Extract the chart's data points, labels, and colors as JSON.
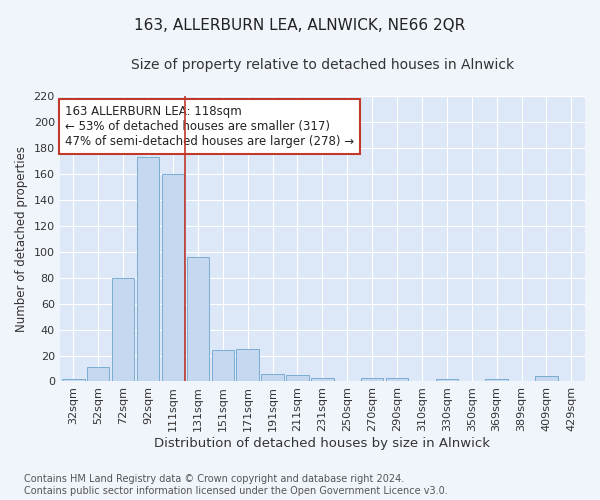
{
  "title": "163, ALLERBURN LEA, ALNWICK, NE66 2QR",
  "subtitle": "Size of property relative to detached houses in Alnwick",
  "xlabel": "Distribution of detached houses by size in Alnwick",
  "ylabel": "Number of detached properties",
  "categories": [
    "32sqm",
    "52sqm",
    "72sqm",
    "92sqm",
    "111sqm",
    "131sqm",
    "151sqm",
    "171sqm",
    "191sqm",
    "211sqm",
    "231sqm",
    "250sqm",
    "270sqm",
    "290sqm",
    "310sqm",
    "330sqm",
    "350sqm",
    "369sqm",
    "389sqm",
    "409sqm",
    "429sqm"
  ],
  "values": [
    2,
    11,
    80,
    173,
    160,
    96,
    24,
    25,
    6,
    5,
    3,
    0,
    3,
    3,
    0,
    2,
    0,
    2,
    0,
    4,
    0
  ],
  "bar_color": "#c5d8f0",
  "bar_edge_color": "#7aadd4",
  "plot_bg_color": "#dce8f7",
  "fig_bg_color": "#f0f4fb",
  "grid_color": "#ffffff",
  "vline_x": 4.5,
  "vline_color": "#c0392b",
  "annotation_line1": "163 ALLERBURN LEA: 118sqm",
  "annotation_line2": "← 53% of detached houses are smaller (317)",
  "annotation_line3": "47% of semi-detached houses are larger (278) →",
  "annotation_box_color": "#ffffff",
  "annotation_box_edge": "#c0392b",
  "ylim": [
    0,
    220
  ],
  "yticks": [
    0,
    20,
    40,
    60,
    80,
    100,
    120,
    140,
    160,
    180,
    200,
    220
  ],
  "footer": "Contains HM Land Registry data © Crown copyright and database right 2024.\nContains public sector information licensed under the Open Government Licence v3.0.",
  "title_fontsize": 11,
  "subtitle_fontsize": 10,
  "xlabel_fontsize": 9.5,
  "ylabel_fontsize": 8.5,
  "footer_fontsize": 7,
  "tick_fontsize": 8,
  "annot_fontsize": 8.5
}
